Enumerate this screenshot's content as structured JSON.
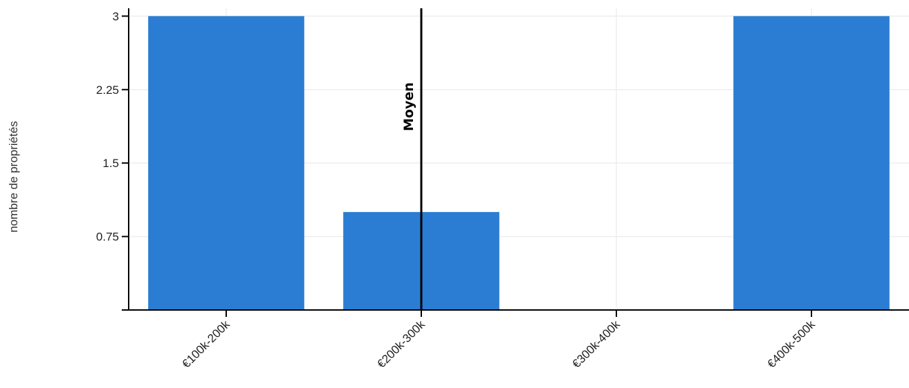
{
  "chart_data": {
    "type": "bar",
    "categories": [
      "€100k-200k",
      "€200k-300k",
      "€300k-400k",
      "€400k-500k"
    ],
    "values": [
      3,
      1,
      0,
      3
    ],
    "ylabel": "nombre de propriétés",
    "ylim": [
      0,
      3.08
    ],
    "yticks": [
      0.75,
      1.5,
      2.25,
      3
    ],
    "ytick_labels": [
      "0.75",
      "1.5",
      "2.25",
      "3"
    ],
    "grid": true,
    "bar_color": "#2a7dd2",
    "reference_line": {
      "label": "Moyen",
      "category_index": 1
    }
  }
}
